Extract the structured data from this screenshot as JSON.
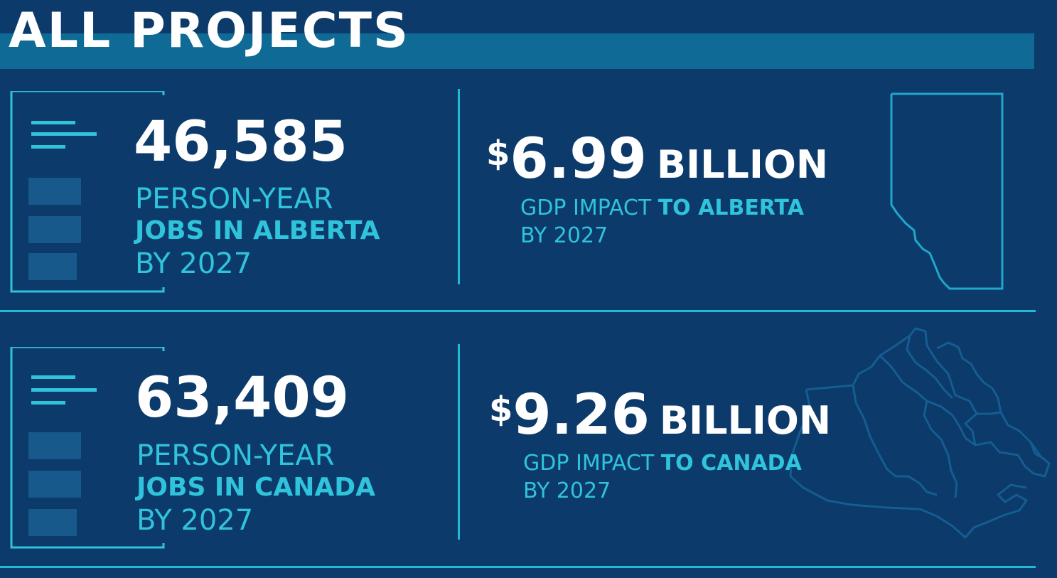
{
  "title": "ALL PROJECTS",
  "colors": {
    "background": "#0c3a6a",
    "title_band": "#0f6b95",
    "accent_cyan": "#2fc3dc",
    "divider": "#1fbad6"
  },
  "alberta": {
    "jobs": {
      "value": "46,585",
      "line1": "PERSON-YEAR",
      "line2": "JOBS IN ALBERTA",
      "line3": "BY 2027",
      "icon": "document-list-icon"
    },
    "gdp": {
      "dollar": "$",
      "amount": "6.99",
      "unit": "BILLION",
      "label_prefix": "GDP IMPACT",
      "label_strong": "TO ALBERTA",
      "by": "BY 2027",
      "icon": "alberta-map-icon"
    }
  },
  "canada": {
    "jobs": {
      "value": "63,409",
      "line1": "PERSON-YEAR",
      "line2": "JOBS IN CANADA",
      "line3": "BY 2027",
      "icon": "document-list-icon"
    },
    "gdp": {
      "dollar": "$",
      "amount": "9.26",
      "unit": "BILLION",
      "label_prefix": "GDP IMPACT",
      "label_strong": "TO CANADA",
      "by": "BY 2027",
      "icon": "canada-map-icon"
    }
  }
}
